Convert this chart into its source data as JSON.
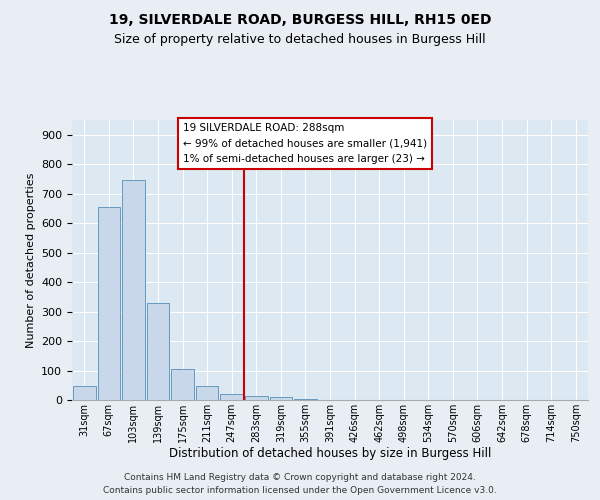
{
  "title1": "19, SILVERDALE ROAD, BURGESS HILL, RH15 0ED",
  "title2": "Size of property relative to detached houses in Burgess Hill",
  "xlabel": "Distribution of detached houses by size in Burgess Hill",
  "ylabel": "Number of detached properties",
  "bin_labels": [
    "31sqm",
    "67sqm",
    "103sqm",
    "139sqm",
    "175sqm",
    "211sqm",
    "247sqm",
    "283sqm",
    "319sqm",
    "355sqm",
    "391sqm",
    "426sqm",
    "462sqm",
    "498sqm",
    "534sqm",
    "570sqm",
    "606sqm",
    "642sqm",
    "678sqm",
    "714sqm",
    "750sqm"
  ],
  "bar_values": [
    48,
    655,
    745,
    328,
    105,
    48,
    22,
    12,
    10,
    5,
    0,
    0,
    0,
    0,
    0,
    0,
    0,
    0,
    0,
    0,
    0
  ],
  "bar_color": "#c8d8ea",
  "bar_edge_color": "#6699bb",
  "red_line_bin": 7,
  "ylim": [
    0,
    950
  ],
  "yticks": [
    0,
    100,
    200,
    300,
    400,
    500,
    600,
    700,
    800,
    900
  ],
  "annotation_title": "19 SILVERDALE ROAD: 288sqm",
  "annotation_line1": "← 99% of detached houses are smaller (1,941)",
  "annotation_line2": "1% of semi-detached houses are larger (23) →",
  "annotation_box_facecolor": "#ffffff",
  "annotation_box_edgecolor": "#cc0000",
  "footer1": "Contains HM Land Registry data © Crown copyright and database right 2024.",
  "footer2": "Contains public sector information licensed under the Open Government Licence v3.0.",
  "bg_color": "#e8eef4",
  "plot_bg_color": "#dce8f2"
}
